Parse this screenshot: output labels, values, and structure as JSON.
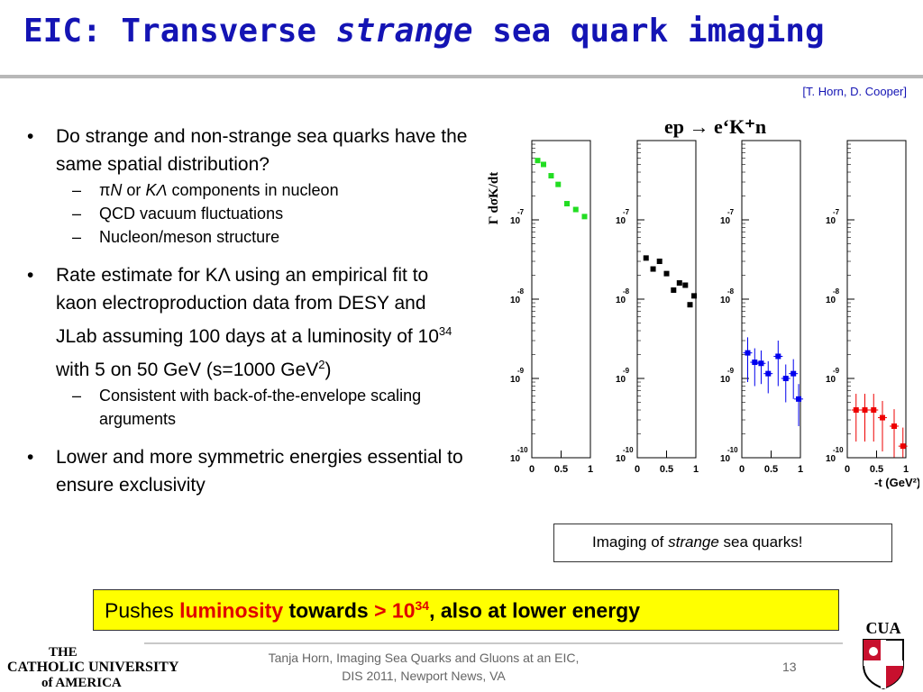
{
  "slide": {
    "title_part1": "EIC: Transverse ",
    "title_italic": "strange",
    "title_part2": " sea quark imaging",
    "citation": "[T. Horn, D. Cooper]"
  },
  "bullets": {
    "b1": "Do strange and non-strange sea quarks have the same spatial distribution?",
    "b1_sub1_a": "π",
    "b1_sub1_b": "N",
    "b1_sub1_c": " or ",
    "b1_sub1_d": "KΛ",
    "b1_sub1_e": " components in nucleon",
    "b1_sub2": "QCD vacuum fluctuations",
    "b1_sub3": "Nucleon/meson structure",
    "b2_part1": "Rate estimate for KΛ using an empirical fit to kaon electroproduction data from DESY and JLab assuming 100 days at a luminosity of 10",
    "b2_sup1": "34",
    "b2_part2": " with 5 on 50 GeV (s=1000 GeV",
    "b2_sup2": "2",
    "b2_part3": ")",
    "b2_sub1": "Consistent with back-of-the-envelope scaling arguments",
    "b3": "Lower and more symmetric energies essential to ensure exclusivity"
  },
  "chart_data": {
    "type": "scatter",
    "title": "ep → e‘K⁺n",
    "ylabel": "Γ dσK/dt",
    "xlabel": "-t (GeV²)",
    "log_y": true,
    "ylim": [
      1e-10,
      1e-06
    ],
    "xlim": [
      0,
      1
    ],
    "x_ticks": [
      "0",
      "0.5",
      "1"
    ],
    "y_tick_base": "10",
    "y_tick_exponents": [
      "-7",
      "-8",
      "-9",
      "-10"
    ],
    "panels": [
      {
        "name": "panel-1",
        "color": "#22dd22",
        "errorbars": false,
        "points": [
          [
            0.1,
            5.6e-07
          ],
          [
            0.2,
            5e-07
          ],
          [
            0.33,
            3.6e-07
          ],
          [
            0.45,
            2.8e-07
          ],
          [
            0.6,
            1.6e-07
          ],
          [
            0.75,
            1.35e-07
          ],
          [
            0.9,
            1.1e-07
          ]
        ]
      },
      {
        "name": "panel-2",
        "color": "#000000",
        "errorbars": false,
        "points": [
          [
            0.15,
            3.3e-08
          ],
          [
            0.27,
            2.4e-08
          ],
          [
            0.38,
            3e-08
          ],
          [
            0.5,
            2.1e-08
          ],
          [
            0.62,
            1.3e-08
          ],
          [
            0.72,
            1.6e-08
          ],
          [
            0.82,
            1.5e-08
          ],
          [
            0.9,
            8.5e-09
          ],
          [
            0.97,
            1.1e-08
          ]
        ]
      },
      {
        "name": "panel-3",
        "color": "#0000ee",
        "errorbars": true,
        "points": [
          [
            0.1,
            2.1e-09,
            1.2e-09
          ],
          [
            0.22,
            1.6e-09,
            8e-10
          ],
          [
            0.33,
            1.55e-09,
            7e-10
          ],
          [
            0.45,
            1.15e-09,
            5e-10
          ],
          [
            0.62,
            1.9e-09,
            1.1e-09
          ],
          [
            0.75,
            1e-09,
            5e-10
          ],
          [
            0.88,
            1.15e-09,
            6e-10
          ],
          [
            0.97,
            5.5e-10,
            3e-10
          ]
        ]
      },
      {
        "name": "panel-4",
        "color": "#ee0000",
        "errorbars": true,
        "points": [
          [
            0.15,
            4e-10,
            2.4e-10
          ],
          [
            0.3,
            4e-10,
            2.4e-10
          ],
          [
            0.45,
            4e-10,
            2.4e-10
          ],
          [
            0.6,
            3.2e-10,
            2e-10
          ],
          [
            0.8,
            2.5e-10,
            1.6e-10
          ],
          [
            0.95,
            1.4e-10,
            1e-10
          ]
        ]
      }
    ]
  },
  "caption": {
    "prefix": "Imaging of ",
    "italic": "strange",
    "suffix": " sea quarks!"
  },
  "banner": {
    "prefix": "Pushes ",
    "red1": "luminosity",
    "bold1": " towards ",
    "red2": "> 10",
    "sup": "34",
    "bold2": ", also at lower energy"
  },
  "footer": {
    "line1": "Tanja Horn, Imaging Sea Quarks and Gluons at an EIC,",
    "line2": "DIS 2011, Newport News, VA",
    "page": "13",
    "logo_line1": "THE",
    "logo_line2": "CATHOLIC UNIVERSITY",
    "logo_line3": "of AMERICA",
    "cua_text": "CUA"
  },
  "colors": {
    "title": "#1414b4",
    "banner_bg": "#ffff00",
    "highlight": "#e00000"
  }
}
